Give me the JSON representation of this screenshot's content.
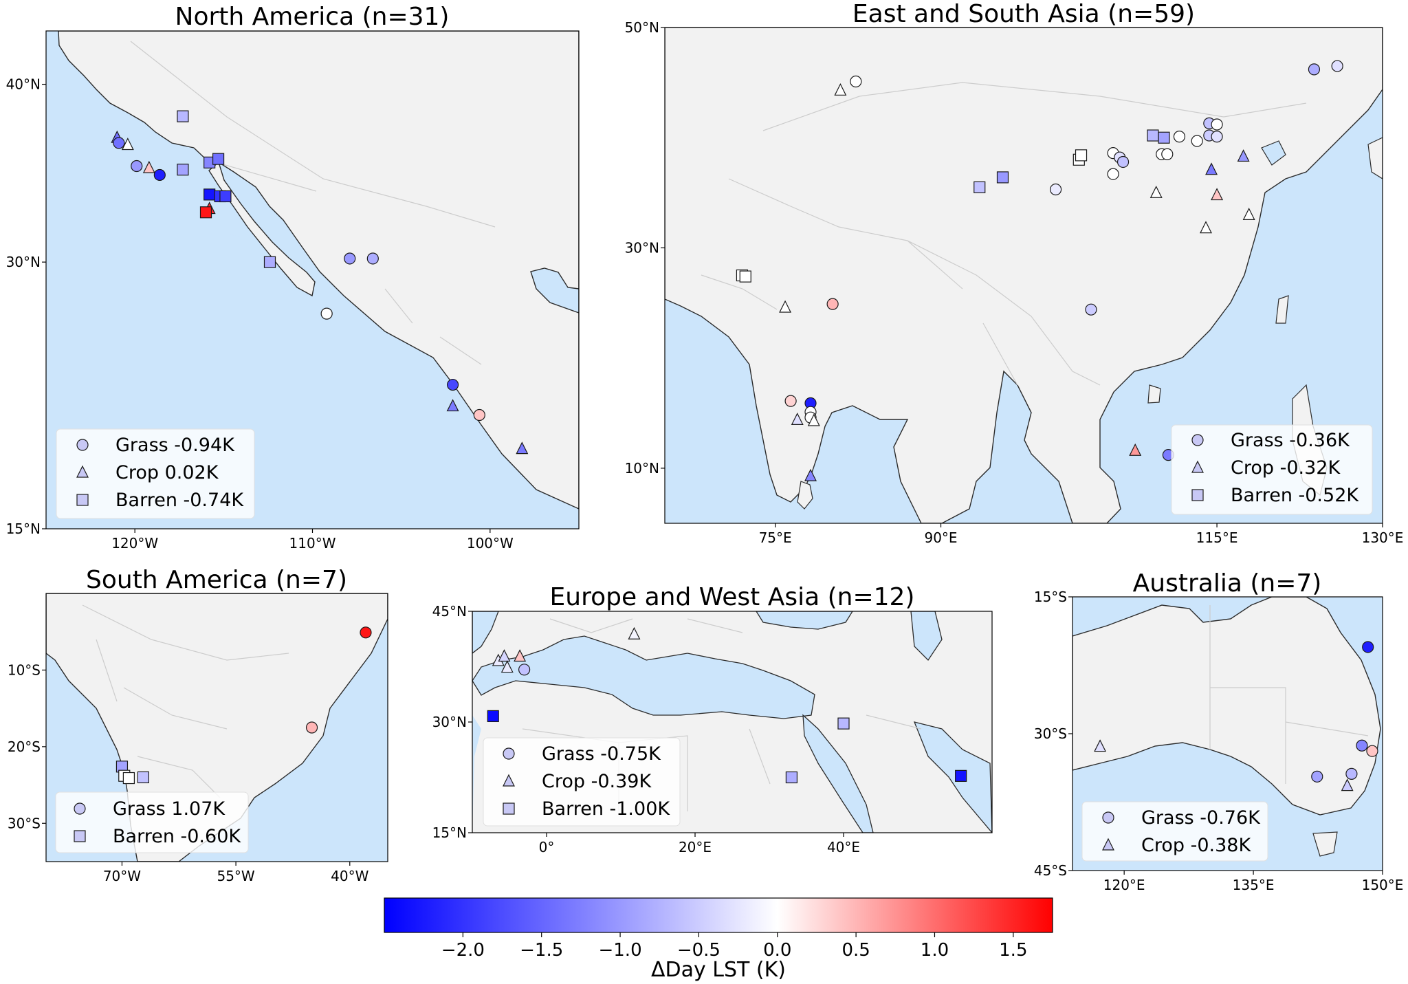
{
  "colorbar": {
    "label": "ΔDay LST (K)",
    "vmin": -2.5,
    "vmax": 1.75,
    "ticks": [
      "−2.0",
      "−1.5",
      "−1.0",
      "−0.5",
      "0.0",
      "0.5",
      "1.0",
      "1.5"
    ],
    "tick_values": [
      -2.0,
      -1.5,
      -1.0,
      -0.5,
      0.0,
      0.5,
      1.0,
      1.5
    ],
    "colors": {
      "low": "#0000ff",
      "mid": "#ffffff",
      "high": "#ff0000"
    }
  },
  "colors": {
    "ocean": "#cce5fb",
    "land": "#f2f2f2",
    "border": "#cccccc",
    "coast": "#2b2b2b"
  },
  "marker_kinds": {
    "grass": "circle",
    "crop": "triangle",
    "barren": "square"
  },
  "panels": [
    {
      "id": "north-america",
      "title": "North America (n=31)",
      "lon_range": [
        -125,
        -95
      ],
      "lat_range": [
        15,
        43
      ],
      "xticks": [
        {
          "v": -120,
          "label": "120°W"
        },
        {
          "v": -110,
          "label": "110°W"
        },
        {
          "v": -100,
          "label": "100°W"
        }
      ],
      "yticks": [
        {
          "v": 40,
          "label": "40°N"
        },
        {
          "v": 30,
          "label": "30°N"
        },
        {
          "v": 15,
          "label": "15°N"
        }
      ],
      "legend": [
        {
          "kind": "grass",
          "label": "Grass -0.94K"
        },
        {
          "kind": "crop",
          "label": "Crop 0.02K"
        },
        {
          "kind": "barren",
          "label": "Barren -0.74K"
        }
      ],
      "sites": [
        {
          "kind": "triangle",
          "lon": -121.0,
          "lat": 37.0,
          "v": -1.4
        },
        {
          "kind": "circle",
          "lon": -120.9,
          "lat": 36.7,
          "v": -1.4
        },
        {
          "kind": "triangle",
          "lon": -120.4,
          "lat": 36.6,
          "v": 0.0
        },
        {
          "kind": "circle",
          "lon": -119.9,
          "lat": 35.4,
          "v": -1.0
        },
        {
          "kind": "triangle",
          "lon": -119.2,
          "lat": 35.3,
          "v": 0.4
        },
        {
          "kind": "circle",
          "lon": -118.6,
          "lat": 34.9,
          "v": -2.2
        },
        {
          "kind": "square",
          "lon": -117.3,
          "lat": 38.2,
          "v": -0.7
        },
        {
          "kind": "square",
          "lon": -117.3,
          "lat": 35.2,
          "v": -0.9
        },
        {
          "kind": "square",
          "lon": -115.8,
          "lat": 35.6,
          "v": -1.2
        },
        {
          "kind": "square",
          "lon": -115.3,
          "lat": 35.8,
          "v": -1.4
        },
        {
          "kind": "square",
          "lon": -115.8,
          "lat": 33.8,
          "v": -2.3
        },
        {
          "kind": "square",
          "lon": -115.2,
          "lat": 33.7,
          "v": -2.0
        },
        {
          "kind": "square",
          "lon": -114.9,
          "lat": 33.7,
          "v": -1.9
        },
        {
          "kind": "triangle",
          "lon": -115.8,
          "lat": 33.0,
          "v": 1.4
        },
        {
          "kind": "square",
          "lon": -116.0,
          "lat": 32.8,
          "v": 1.6
        },
        {
          "kind": "square",
          "lon": -112.4,
          "lat": 30.0,
          "v": -0.8
        },
        {
          "kind": "circle",
          "lon": -107.9,
          "lat": 30.2,
          "v": -1.0
        },
        {
          "kind": "circle",
          "lon": -106.6,
          "lat": 30.2,
          "v": -0.8
        },
        {
          "kind": "circle",
          "lon": -109.2,
          "lat": 27.1,
          "v": 0.0
        },
        {
          "kind": "circle",
          "lon": -102.1,
          "lat": 23.1,
          "v": -1.8
        },
        {
          "kind": "triangle",
          "lon": -102.1,
          "lat": 21.9,
          "v": -1.3
        },
        {
          "kind": "circle",
          "lon": -100.6,
          "lat": 21.4,
          "v": 0.4
        },
        {
          "kind": "triangle",
          "lon": -98.2,
          "lat": 19.5,
          "v": -1.3
        }
      ]
    },
    {
      "id": "east-south-asia",
      "title": "East and South Asia (n=59)",
      "lon_range": [
        65,
        130
      ],
      "lat_range": [
        5,
        50
      ],
      "xticks": [
        {
          "v": 75,
          "label": "75°E"
        },
        {
          "v": 90,
          "label": "90°E"
        },
        {
          "v": 115,
          "label": "115°E"
        },
        {
          "v": 130,
          "label": "130°E"
        }
      ],
      "yticks": [
        {
          "v": 50,
          "label": "50°N"
        },
        {
          "v": 30,
          "label": "30°N"
        },
        {
          "v": 10,
          "label": "10°N"
        }
      ],
      "legend": [
        {
          "kind": "grass",
          "label": "Grass -0.36K"
        },
        {
          "kind": "crop",
          "label": "Crop -0.32K"
        },
        {
          "kind": "barren",
          "label": "Barren -0.52K"
        }
      ],
      "sites": [
        {
          "kind": "triangle",
          "lon": 80.9,
          "lat": 44.3,
          "v": 0.0
        },
        {
          "kind": "circle",
          "lon": 82.3,
          "lat": 45.1,
          "v": 0.0
        },
        {
          "kind": "circle",
          "lon": 123.8,
          "lat": 46.2,
          "v": -0.8
        },
        {
          "kind": "circle",
          "lon": 125.9,
          "lat": 46.5,
          "v": -0.3
        },
        {
          "kind": "square",
          "lon": 93.5,
          "lat": 35.5,
          "v": -0.6
        },
        {
          "kind": "square",
          "lon": 95.6,
          "lat": 36.4,
          "v": -1.0
        },
        {
          "kind": "circle",
          "lon": 100.4,
          "lat": 35.3,
          "v": -0.2
        },
        {
          "kind": "square",
          "lon": 102.5,
          "lat": 38.0,
          "v": 0.0
        },
        {
          "kind": "square",
          "lon": 102.7,
          "lat": 38.4,
          "v": 0.0
        },
        {
          "kind": "circle",
          "lon": 105.6,
          "lat": 38.6,
          "v": 0.0
        },
        {
          "kind": "circle",
          "lon": 105.6,
          "lat": 36.7,
          "v": 0.0
        },
        {
          "kind": "circle",
          "lon": 106.2,
          "lat": 38.2,
          "v": -0.3
        },
        {
          "kind": "circle",
          "lon": 106.5,
          "lat": 37.8,
          "v": -0.6
        },
        {
          "kind": "square",
          "lon": 109.2,
          "lat": 40.2,
          "v": -0.7
        },
        {
          "kind": "square",
          "lon": 110.2,
          "lat": 40.0,
          "v": -0.9
        },
        {
          "kind": "circle",
          "lon": 110.0,
          "lat": 38.5,
          "v": 0.0
        },
        {
          "kind": "circle",
          "lon": 110.5,
          "lat": 38.5,
          "v": 0.0
        },
        {
          "kind": "circle",
          "lon": 111.6,
          "lat": 40.1,
          "v": 0.0
        },
        {
          "kind": "circle",
          "lon": 113.2,
          "lat": 39.7,
          "v": 0.0
        },
        {
          "kind": "circle",
          "lon": 114.3,
          "lat": 41.3,
          "v": -0.6
        },
        {
          "kind": "circle",
          "lon": 114.3,
          "lat": 40.2,
          "v": -0.5
        },
        {
          "kind": "circle",
          "lon": 115.0,
          "lat": 41.2,
          "v": 0.0
        },
        {
          "kind": "circle",
          "lon": 115.0,
          "lat": 40.1,
          "v": -0.3
        },
        {
          "kind": "triangle",
          "lon": 114.5,
          "lat": 37.1,
          "v": -1.3
        },
        {
          "kind": "triangle",
          "lon": 117.4,
          "lat": 38.3,
          "v": -1.0
        },
        {
          "kind": "triangle",
          "lon": 109.5,
          "lat": 35.0,
          "v": 0.0
        },
        {
          "kind": "triangle",
          "lon": 115.0,
          "lat": 34.8,
          "v": 0.4
        },
        {
          "kind": "triangle",
          "lon": 114.0,
          "lat": 31.8,
          "v": 0.0
        },
        {
          "kind": "triangle",
          "lon": 117.9,
          "lat": 33.0,
          "v": 0.0
        },
        {
          "kind": "square",
          "lon": 72.0,
          "lat": 27.5,
          "v": 0.0
        },
        {
          "kind": "square",
          "lon": 72.3,
          "lat": 27.4,
          "v": 0.0
        },
        {
          "kind": "triangle",
          "lon": 75.9,
          "lat": 24.6,
          "v": 0.0
        },
        {
          "kind": "circle",
          "lon": 80.2,
          "lat": 24.9,
          "v": 0.5
        },
        {
          "kind": "circle",
          "lon": 103.6,
          "lat": 24.4,
          "v": -0.5
        },
        {
          "kind": "circle",
          "lon": 76.4,
          "lat": 16.1,
          "v": 0.3
        },
        {
          "kind": "circle",
          "lon": 78.2,
          "lat": 15.9,
          "v": -2.2
        },
        {
          "kind": "circle",
          "lon": 78.2,
          "lat": 15.1,
          "v": 0.0
        },
        {
          "kind": "circle",
          "lon": 78.2,
          "lat": 14.6,
          "v": 0.0
        },
        {
          "kind": "triangle",
          "lon": 77.0,
          "lat": 14.4,
          "v": -0.3
        },
        {
          "kind": "triangle",
          "lon": 78.5,
          "lat": 14.3,
          "v": 0.0
        },
        {
          "kind": "triangle",
          "lon": 78.2,
          "lat": 9.3,
          "v": -1.2
        },
        {
          "kind": "triangle",
          "lon": 107.6,
          "lat": 11.6,
          "v": 0.7
        },
        {
          "kind": "circle",
          "lon": 110.6,
          "lat": 11.2,
          "v": -1.3
        }
      ]
    },
    {
      "id": "south-america",
      "title": "South America (n=7)",
      "lon_range": [
        -80,
        -35
      ],
      "lat_range": [
        -35,
        0
      ],
      "xticks": [
        {
          "v": -70,
          "label": "70°W"
        },
        {
          "v": -55,
          "label": "55°W"
        },
        {
          "v": -40,
          "label": "40°W"
        }
      ],
      "yticks": [
        {
          "v": -10,
          "label": "10°S"
        },
        {
          "v": -20,
          "label": "20°S"
        },
        {
          "v": -30,
          "label": "30°S"
        }
      ],
      "legend": [
        {
          "kind": "grass",
          "label": "Grass 1.07K"
        },
        {
          "kind": "barren",
          "label": "Barren -0.60K"
        }
      ],
      "sites": [
        {
          "kind": "circle",
          "lon": -37.9,
          "lat": -5.1,
          "v": 1.6
        },
        {
          "kind": "circle",
          "lon": -45.0,
          "lat": -17.5,
          "v": 0.5
        },
        {
          "kind": "square",
          "lon": -70.0,
          "lat": -22.6,
          "v": -0.9
        },
        {
          "kind": "square",
          "lon": -69.7,
          "lat": -23.8,
          "v": 0.0
        },
        {
          "kind": "square",
          "lon": -69.1,
          "lat": -24.1,
          "v": 0.0
        },
        {
          "kind": "square",
          "lon": -67.2,
          "lat": -24.0,
          "v": -0.6
        }
      ]
    },
    {
      "id": "europe-west-asia",
      "title": "Europe and West Asia (n=12)",
      "lon_range": [
        -10,
        60
      ],
      "lat_range": [
        15,
        45
      ],
      "xticks": [
        {
          "v": 0,
          "label": "0°"
        },
        {
          "v": 20,
          "label": "20°E"
        },
        {
          "v": 40,
          "label": "40°E"
        }
      ],
      "yticks": [
        {
          "v": 45,
          "label": "45°N"
        },
        {
          "v": 30,
          "label": "30°N"
        },
        {
          "v": 15,
          "label": "15°N"
        }
      ],
      "legend": [
        {
          "kind": "grass",
          "label": "Grass -0.75K"
        },
        {
          "kind": "crop",
          "label": "Crop -0.39K"
        },
        {
          "kind": "barren",
          "label": "Barren -1.00K"
        }
      ],
      "sites": [
        {
          "kind": "triangle",
          "lon": -6.5,
          "lat": 38.3,
          "v": -0.2
        },
        {
          "kind": "triangle",
          "lon": -5.7,
          "lat": 38.9,
          "v": -0.4
        },
        {
          "kind": "triangle",
          "lon": -5.3,
          "lat": 37.4,
          "v": -0.2
        },
        {
          "kind": "triangle",
          "lon": -3.6,
          "lat": 38.9,
          "v": 0.4
        },
        {
          "kind": "circle",
          "lon": -3.0,
          "lat": 37.1,
          "v": -0.6
        },
        {
          "kind": "triangle",
          "lon": 11.8,
          "lat": 41.9,
          "v": -0.1
        },
        {
          "kind": "square",
          "lon": -7.2,
          "lat": 30.8,
          "v": -2.4
        },
        {
          "kind": "square",
          "lon": 40.0,
          "lat": 29.8,
          "v": -0.7
        },
        {
          "kind": "square",
          "lon": 33.0,
          "lat": 22.5,
          "v": -0.8
        },
        {
          "kind": "square",
          "lon": 55.8,
          "lat": 22.7,
          "v": -2.3
        }
      ]
    },
    {
      "id": "australia",
      "title": "Australia (n=7)",
      "lon_range": [
        114,
        150
      ],
      "lat_range": [
        -45,
        -15
      ],
      "xticks": [
        {
          "v": 120,
          "label": "120°E"
        },
        {
          "v": 135,
          "label": "135°E"
        },
        {
          "v": 150,
          "label": "150°E"
        }
      ],
      "yticks": [
        {
          "v": -15,
          "label": "15°S"
        },
        {
          "v": -30,
          "label": "30°S"
        },
        {
          "v": -45,
          "label": "45°S"
        }
      ],
      "legend": [
        {
          "kind": "grass",
          "label": "Grass -0.76K"
        },
        {
          "kind": "crop",
          "label": "Crop -0.38K"
        }
      ],
      "sites": [
        {
          "kind": "circle",
          "lon": 148.3,
          "lat": -20.5,
          "v": -2.2
        },
        {
          "kind": "triangle",
          "lon": 117.2,
          "lat": -31.4,
          "v": -0.3
        },
        {
          "kind": "circle",
          "lon": 147.6,
          "lat": -31.3,
          "v": -1.2
        },
        {
          "kind": "circle",
          "lon": 148.8,
          "lat": -31.9,
          "v": 0.4
        },
        {
          "kind": "circle",
          "lon": 142.4,
          "lat": -34.7,
          "v": -0.9
        },
        {
          "kind": "circle",
          "lon": 146.4,
          "lat": -34.4,
          "v": -0.7
        },
        {
          "kind": "triangle",
          "lon": 145.9,
          "lat": -35.7,
          "v": -0.5
        }
      ]
    }
  ]
}
